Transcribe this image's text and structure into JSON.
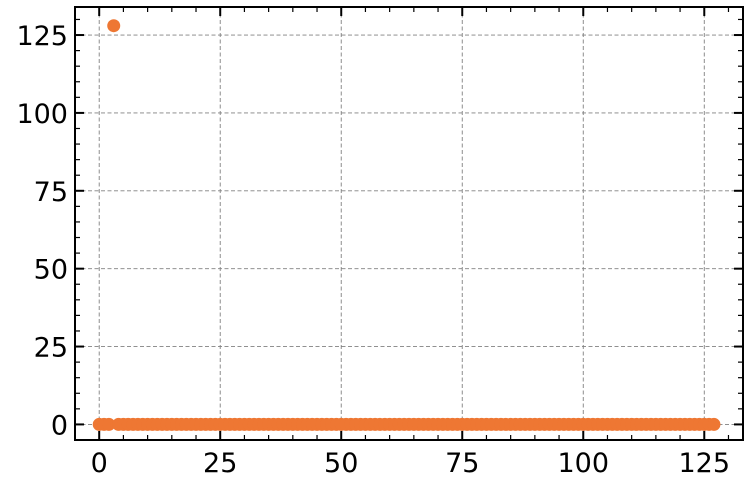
{
  "chart_data": {
    "type": "scatter",
    "title": "",
    "xlabel": "",
    "ylabel": "",
    "xlim": [
      -5,
      133
    ],
    "ylim": [
      -5,
      134
    ],
    "x_ticks": [
      0,
      25,
      50,
      75,
      100,
      125
    ],
    "y_ticks": [
      0,
      25,
      50,
      75,
      100,
      125
    ],
    "x_tick_labels": [
      "0",
      "25",
      "50",
      "75",
      "100",
      "125"
    ],
    "y_tick_labels": [
      "0",
      "25",
      "50",
      "75",
      "100",
      "125"
    ],
    "grid": true,
    "legend": "none",
    "marker_color": "#ee7733",
    "series": [
      {
        "x": [
          0,
          1,
          2,
          3,
          4,
          5,
          6,
          7,
          8,
          9,
          10,
          11,
          12,
          13,
          14,
          15,
          16,
          17,
          18,
          19,
          20,
          21,
          22,
          23,
          24,
          25,
          26,
          27,
          28,
          29,
          30,
          31,
          32,
          33,
          34,
          35,
          36,
          37,
          38,
          39,
          40,
          41,
          42,
          43,
          44,
          45,
          46,
          47,
          48,
          49,
          50,
          51,
          52,
          53,
          54,
          55,
          56,
          57,
          58,
          59,
          60,
          61,
          62,
          63,
          64,
          65,
          66,
          67,
          68,
          69,
          70,
          71,
          72,
          73,
          74,
          75,
          76,
          77,
          78,
          79,
          80,
          81,
          82,
          83,
          84,
          85,
          86,
          87,
          88,
          89,
          90,
          91,
          92,
          93,
          94,
          95,
          96,
          97,
          98,
          99,
          100,
          101,
          102,
          103,
          104,
          105,
          106,
          107,
          108,
          109,
          110,
          111,
          112,
          113,
          114,
          115,
          116,
          117,
          118,
          119,
          120,
          121,
          122,
          123,
          124,
          125,
          126,
          127
        ],
        "y": [
          0,
          0,
          0,
          128,
          0,
          0,
          0,
          0,
          0,
          0,
          0,
          0,
          0,
          0,
          0,
          0,
          0,
          0,
          0,
          0,
          0,
          0,
          0,
          0,
          0,
          0,
          0,
          0,
          0,
          0,
          0,
          0,
          0,
          0,
          0,
          0,
          0,
          0,
          0,
          0,
          0,
          0,
          0,
          0,
          0,
          0,
          0,
          0,
          0,
          0,
          0,
          0,
          0,
          0,
          0,
          0,
          0,
          0,
          0,
          0,
          0,
          0,
          0,
          0,
          0,
          0,
          0,
          0,
          0,
          0,
          0,
          0,
          0,
          0,
          0,
          0,
          0,
          0,
          0,
          0,
          0,
          0,
          0,
          0,
          0,
          0,
          0,
          0,
          0,
          0,
          0,
          0,
          0,
          0,
          0,
          0,
          0,
          0,
          0,
          0,
          0,
          0,
          0,
          0,
          0,
          0,
          0,
          0,
          0,
          0,
          0,
          0,
          0,
          0,
          0,
          0,
          0,
          0,
          0,
          0,
          0,
          0,
          0,
          0,
          0,
          0,
          0,
          0
        ]
      }
    ]
  }
}
